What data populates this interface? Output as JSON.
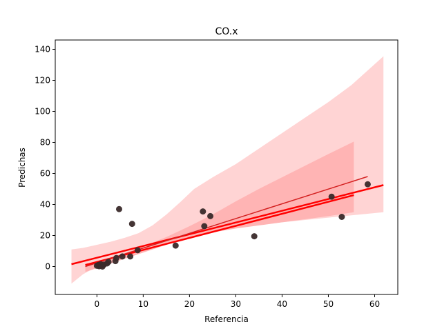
{
  "chart_data": {
    "type": "scatter",
    "title": "CO.x",
    "xlabel": "Referencia",
    "ylabel": "Predichas",
    "xlim": [
      -9,
      65
    ],
    "ylim": [
      -18,
      146
    ],
    "xticks": [
      0,
      10,
      20,
      30,
      40,
      50,
      60
    ],
    "yticks": [
      0,
      20,
      40,
      60,
      80,
      100,
      120,
      140
    ],
    "grid": false,
    "legend": "none",
    "points": [
      {
        "x": 0.0,
        "y": 0.5
      },
      {
        "x": 0.3,
        "y": 1.0
      },
      {
        "x": 0.5,
        "y": 0.2
      },
      {
        "x": 0.8,
        "y": 1.5
      },
      {
        "x": 1.0,
        "y": 0.8
      },
      {
        "x": 1.2,
        "y": 0.0
      },
      {
        "x": 1.5,
        "y": 1.2
      },
      {
        "x": 2.2,
        "y": 2.0
      },
      {
        "x": 2.5,
        "y": 3.0
      },
      {
        "x": 4.0,
        "y": 3.5
      },
      {
        "x": 4.2,
        "y": 5.5
      },
      {
        "x": 4.8,
        "y": 37.0
      },
      {
        "x": 5.5,
        "y": 6.5
      },
      {
        "x": 7.2,
        "y": 6.5
      },
      {
        "x": 7.6,
        "y": 27.5
      },
      {
        "x": 8.8,
        "y": 10.5
      },
      {
        "x": 17.0,
        "y": 13.5
      },
      {
        "x": 22.9,
        "y": 35.5
      },
      {
        "x": 23.2,
        "y": 26.0
      },
      {
        "x": 24.5,
        "y": 32.5
      },
      {
        "x": 34.0,
        "y": 19.5
      },
      {
        "x": 50.7,
        "y": 45.0
      },
      {
        "x": 52.9,
        "y": 32.0
      },
      {
        "x": 58.5,
        "y": 53.0
      }
    ],
    "bands": [
      {
        "x": [
          -5.5,
          -3,
          0,
          3,
          6,
          9,
          12,
          15,
          18,
          21,
          25,
          30,
          35,
          40,
          45,
          50,
          55,
          61.9
        ],
        "lower": [
          -11,
          -5,
          0,
          3,
          6.5,
          9.5,
          13,
          16,
          18.5,
          21,
          23.5,
          25.5,
          27,
          28.5,
          30,
          31.5,
          33,
          35
        ],
        "upper": [
          11,
          12,
          14,
          16,
          18.5,
          21.5,
          26.5,
          33.5,
          41.5,
          50,
          57.5,
          66,
          76,
          86,
          96,
          106,
          117,
          135.5
        ]
      },
      {
        "x": [
          -2.5,
          0,
          5,
          10,
          15,
          20,
          25,
          30,
          35,
          40,
          45,
          50,
          55.5
        ],
        "lower": [
          -3.5,
          -1,
          4,
          9,
          14,
          18.5,
          22,
          24.5,
          26.5,
          28.5,
          30.5,
          32.5,
          35
        ],
        "upper": [
          1.5,
          3,
          7.5,
          13,
          19,
          26,
          33.5,
          42,
          50,
          57.5,
          65,
          72.5,
          80.5
        ]
      }
    ],
    "fit_lines": [
      {
        "x": [
          -5.5,
          61.9
        ],
        "y": [
          1.5,
          52.5
        ],
        "width": 2.5
      },
      {
        "x": [
          -2.5,
          55.5
        ],
        "y": [
          1.0,
          46.0
        ],
        "width": 2.5
      },
      {
        "x": [
          -2.5,
          58.5
        ],
        "y": [
          0.0,
          58.0
        ],
        "width": 1.5
      }
    ],
    "colors": {
      "points": "#3a2a2a",
      "line": "#ff0000",
      "band_outer": "#ffd4d4",
      "band_inner": "#ffb4b4",
      "thin_line": "#d42020"
    }
  }
}
